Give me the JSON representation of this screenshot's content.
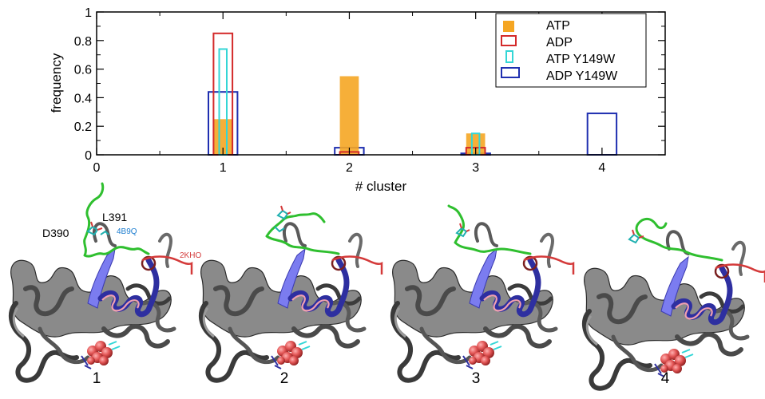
{
  "chart_data": {
    "type": "bar",
    "xlabel": "# cluster",
    "ylabel": "frequency",
    "xlim": [
      0,
      4.5
    ],
    "ylim": [
      0,
      1
    ],
    "xticks": [
      "0",
      "1",
      "2",
      "3",
      "4"
    ],
    "yticks": [
      "0",
      "0.2",
      "0.4",
      "0.6",
      "0.8",
      "1"
    ],
    "categories": [
      1,
      2,
      3,
      4
    ],
    "series": [
      {
        "name": "ATP",
        "values": [
          0.25,
          0.55,
          0.15,
          0
        ],
        "color": "#f5a623",
        "style": "filled"
      },
      {
        "name": "ADP",
        "values": [
          0.85,
          0.02,
          0.05,
          0
        ],
        "color": "#d42a2a",
        "style": "outline"
      },
      {
        "name": "ATP Y149W",
        "values": [
          0.74,
          0.0,
          0.15,
          0
        ],
        "color": "#33d6d6",
        "style": "outline"
      },
      {
        "name": "ADP Y149W",
        "values": [
          0.44,
          0.05,
          0.01,
          0.29
        ],
        "color": "#1f2fb0",
        "style": "outline"
      }
    ],
    "legend_position": "top-right"
  },
  "panels": [
    {
      "number": "1",
      "labels": {
        "d390": "D390",
        "l391": "L391",
        "pdb_blue": "4B9Q",
        "pdb_red": "2KHO"
      }
    },
    {
      "number": "2"
    },
    {
      "number": "3"
    },
    {
      "number": "4"
    }
  ],
  "colors": {
    "protein": "#6e6e6e",
    "helix": "#2e2fa0",
    "sheet": "#7b7cf0",
    "loop": "#2fbf2f",
    "red_structure": "#d43a3a",
    "ligand": "#e25555",
    "label_blue": "#1a7ccf",
    "label_red": "#d43a3a"
  }
}
